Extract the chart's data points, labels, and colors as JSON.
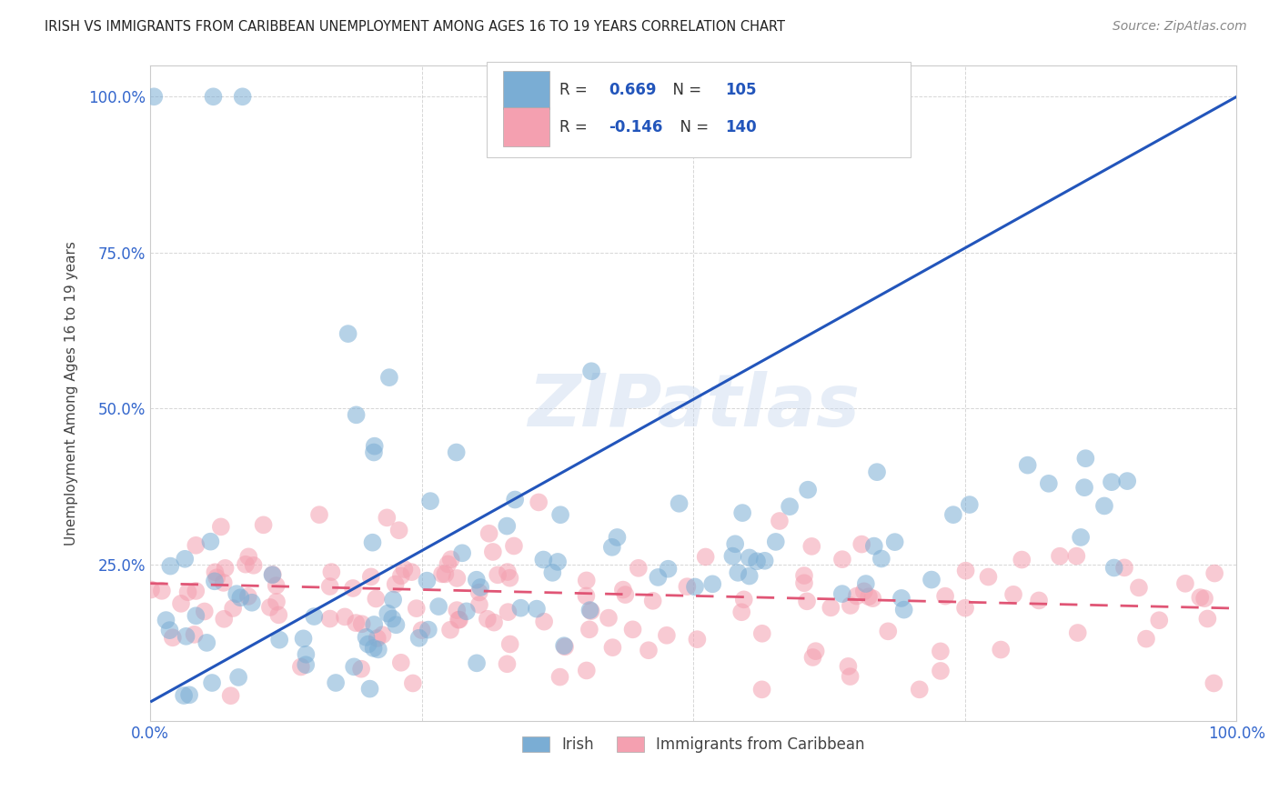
{
  "title": "IRISH VS IMMIGRANTS FROM CARIBBEAN UNEMPLOYMENT AMONG AGES 16 TO 19 YEARS CORRELATION CHART",
  "source": "Source: ZipAtlas.com",
  "ylabel": "Unemployment Among Ages 16 to 19 years",
  "watermark": "ZIPatlas",
  "blue_color": "#7aadd4",
  "pink_color": "#f4a0b0",
  "blue_line_color": "#2255bb",
  "pink_line_color": "#e05575",
  "blue_R": 0.669,
  "blue_N": 105,
  "pink_R": -0.146,
  "pink_N": 140,
  "legend_label_blue": "Irish",
  "legend_label_pink": "Immigrants from Caribbean",
  "background_color": "#ffffff",
  "grid_color": "#cccccc",
  "title_color": "#222222",
  "axis_tick_color": "#3366CC",
  "blue_line_intercept": 0.03,
  "blue_line_slope": 0.97,
  "pink_line_intercept": 0.22,
  "pink_line_slope": -0.04,
  "seed_blue": 12,
  "seed_pink": 77
}
